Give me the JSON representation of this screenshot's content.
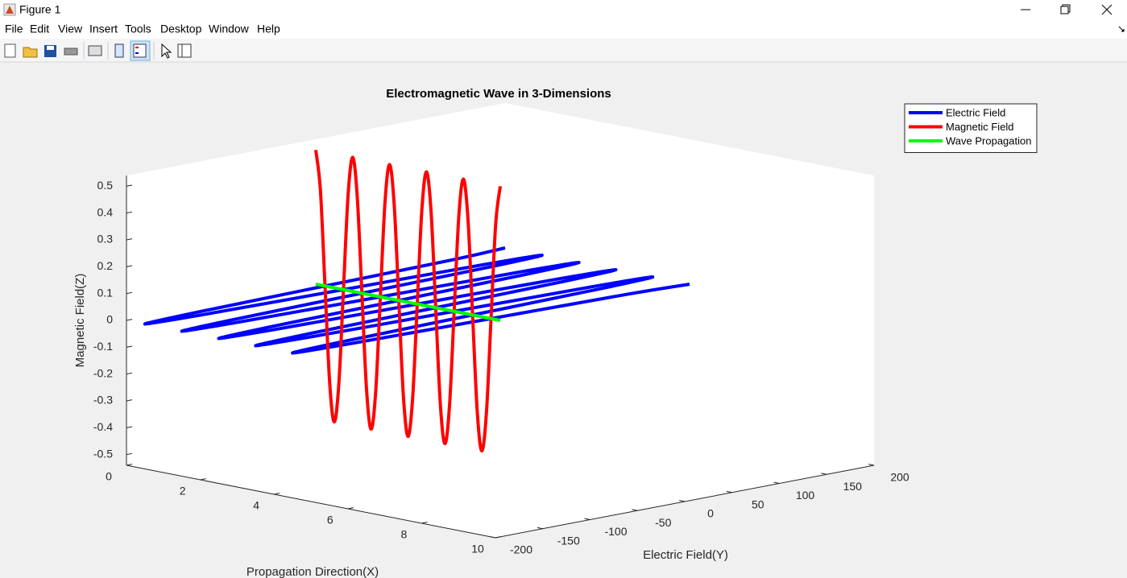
{
  "window": {
    "title": "Figure 1",
    "menu": [
      "File",
      "Edit",
      "View",
      "Insert",
      "Tools",
      "Desktop",
      "Window",
      "Help"
    ]
  },
  "chart_data": {
    "type": "line3d",
    "title": "Electromagnetic Wave in 3-Dimensions",
    "x_label": "Propagation Direction(X)",
    "y_label": "Electric Field(Y)",
    "z_label": "Magnetic Field(Z)",
    "xlim": [
      0,
      10
    ],
    "ylim": [
      -200,
      200
    ],
    "zlim": [
      -0.54,
      0.54
    ],
    "xticks": [
      0,
      2,
      4,
      6,
      8,
      10
    ],
    "yticks": [
      -200,
      -150,
      -100,
      -50,
      0,
      50,
      100,
      150,
      200
    ],
    "zticks": [
      -0.5,
      -0.4,
      -0.3,
      -0.2,
      -0.1,
      0,
      0.1,
      0.2,
      0.3,
      0.4,
      0.5
    ],
    "grid": false,
    "legend": "upper right",
    "x": [
      0,
      0.125,
      0.25,
      0.375,
      0.5,
      0.625,
      0.75,
      0.875,
      1,
      1.125,
      1.25,
      1.375,
      1.5,
      1.625,
      1.75,
      1.875,
      2,
      2.125,
      2.25,
      2.375,
      2.5,
      2.625,
      2.75,
      2.875,
      3,
      3.125,
      3.25,
      3.375,
      3.5,
      3.625,
      3.75,
      3.875,
      4,
      4.125,
      4.25,
      4.375,
      4.5,
      4.625,
      4.75,
      4.875,
      5
    ],
    "series": [
      {
        "name": "Electric Field",
        "color": "#0000ff",
        "y": [
          200,
          141.4,
          0,
          -141.4,
          -200,
          -141.4,
          0,
          141.4,
          200,
          141.4,
          0,
          -141.4,
          -200,
          -141.4,
          0,
          141.4,
          200,
          141.4,
          0,
          -141.4,
          -200,
          -141.4,
          0,
          141.4,
          200,
          141.4,
          0,
          -141.4,
          -200,
          -141.4,
          0,
          141.4,
          200,
          141.4,
          0,
          -141.4,
          -200,
          -141.4,
          0,
          141.4,
          200
        ],
        "z": [
          0,
          0,
          0,
          0,
          0,
          0,
          0,
          0,
          0,
          0,
          0,
          0,
          0,
          0,
          0,
          0,
          0,
          0,
          0,
          0,
          0,
          0,
          0,
          0,
          0,
          0,
          0,
          0,
          0,
          0,
          0,
          0,
          0,
          0,
          0,
          0,
          0,
          0,
          0,
          0,
          0
        ]
      },
      {
        "name": "Magnetic Field",
        "color": "#ff0000",
        "y": [
          0,
          0,
          0,
          0,
          0,
          0,
          0,
          0,
          0,
          0,
          0,
          0,
          0,
          0,
          0,
          0,
          0,
          0,
          0,
          0,
          0,
          0,
          0,
          0,
          0,
          0,
          0,
          0,
          0,
          0,
          0,
          0,
          0,
          0,
          0,
          0,
          0,
          0,
          0,
          0,
          0
        ],
        "z": [
          0.5,
          0.354,
          0,
          -0.354,
          -0.5,
          -0.354,
          0,
          0.354,
          0.5,
          0.354,
          0,
          -0.354,
          -0.5,
          -0.354,
          0,
          0.354,
          0.5,
          0.354,
          0,
          -0.354,
          -0.5,
          -0.354,
          0,
          0.354,
          0.5,
          0.354,
          0,
          -0.354,
          -0.5,
          -0.354,
          0,
          0.354,
          0.5,
          0.354,
          0,
          -0.354,
          -0.5,
          -0.354,
          0,
          0.354,
          0.5
        ]
      },
      {
        "name": "Wave Propagation",
        "color": "#00ff00",
        "y": [
          0,
          0,
          0,
          0,
          0,
          0,
          0,
          0,
          0,
          0,
          0,
          0,
          0,
          0,
          0,
          0,
          0,
          0,
          0,
          0,
          0,
          0,
          0,
          0,
          0,
          0,
          0,
          0,
          0,
          0,
          0,
          0,
          0,
          0,
          0,
          0,
          0,
          0,
          0,
          0,
          0
        ],
        "z": [
          0,
          0,
          0,
          0,
          0,
          0,
          0,
          0,
          0,
          0,
          0,
          0,
          0,
          0,
          0,
          0,
          0,
          0,
          0,
          0,
          0,
          0,
          0,
          0,
          0,
          0,
          0,
          0,
          0,
          0,
          0,
          0,
          0,
          0,
          0,
          0,
          0,
          0,
          0,
          0,
          0
        ]
      }
    ]
  }
}
